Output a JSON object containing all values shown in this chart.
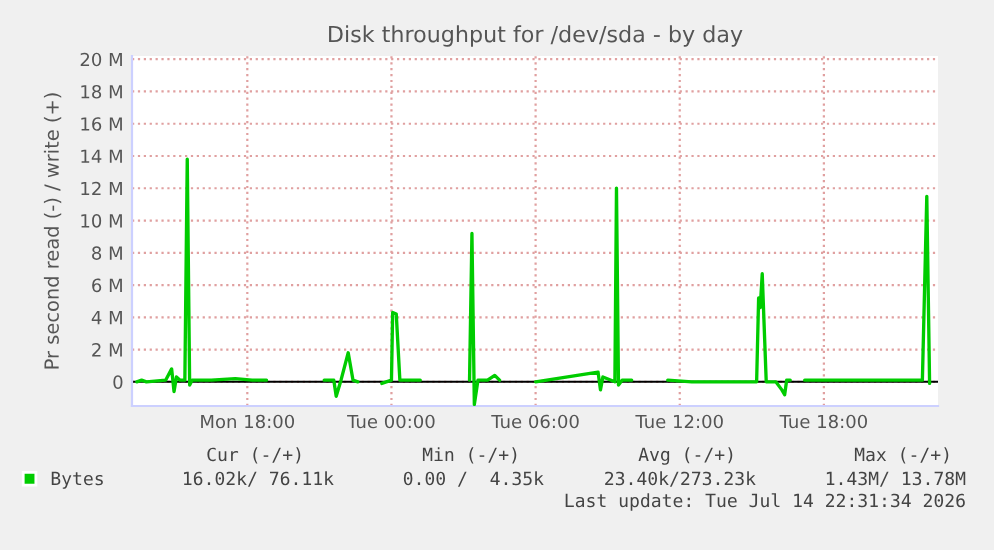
{
  "chart_data": {
    "type": "line",
    "title": "Disk throughput for /dev/sda - by day",
    "ylabel": "Pr second read (-) / write (+)",
    "x": [
      "2026-07-13T13:24",
      "2026-07-13T13:36",
      "2026-07-13T13:48",
      "2026-07-13T14:36",
      "2026-07-13T14:51",
      "2026-07-13T14:57",
      "2026-07-13T15:03",
      "2026-07-13T15:12",
      "2026-07-13T15:24",
      "2026-07-13T15:30",
      "2026-07-13T15:36",
      "2026-07-13T15:42",
      "2026-07-13T16:30",
      "2026-07-13T17:30",
      "2026-07-13T18:12",
      "2026-07-13T18:48",
      "2026-07-13T19:30",
      "2026-07-13T21:12",
      "2026-07-13T21:36",
      "2026-07-13T21:42",
      "2026-07-13T21:54",
      "2026-07-13T22:12",
      "2026-07-13T22:24",
      "2026-07-13T22:36",
      "2026-07-13T23:00",
      "2026-07-13T23:36",
      "2026-07-14T00:00",
      "2026-07-14T00:03",
      "2026-07-14T00:12",
      "2026-07-14T00:21",
      "2026-07-14T00:42",
      "2026-07-14T01:12",
      "2026-07-14T02:00",
      "2026-07-14T03:15",
      "2026-07-14T03:21",
      "2026-07-14T03:27",
      "2026-07-14T03:36",
      "2026-07-14T04:00",
      "2026-07-14T04:18",
      "2026-07-14T04:30",
      "2026-07-14T05:00",
      "2026-07-14T06:00",
      "2026-07-14T08:36",
      "2026-07-14T08:42",
      "2026-07-14T08:48",
      "2026-07-14T09:18",
      "2026-07-14T09:22",
      "2026-07-14T09:27",
      "2026-07-14T09:36",
      "2026-07-14T10:00",
      "2026-07-14T10:30",
      "2026-07-14T11:30",
      "2026-07-14T12:30",
      "2026-07-14T15:12",
      "2026-07-14T15:17",
      "2026-07-14T15:21",
      "2026-07-14T15:26",
      "2026-07-14T15:36",
      "2026-07-14T16:00",
      "2026-07-14T16:15",
      "2026-07-14T16:22",
      "2026-07-14T16:27",
      "2026-07-14T16:36",
      "2026-07-14T17:00",
      "2026-07-14T17:12",
      "2026-07-14T21:30",
      "2026-07-14T22:06",
      "2026-07-14T22:17",
      "2026-07-14T22:24"
    ],
    "series": [
      {
        "name": "Bytes",
        "color": "#00cc00",
        "values": [
          0.0,
          0.1,
          0.0,
          0.1,
          0.8,
          -0.6,
          0.3,
          0.1,
          0.1,
          13.8,
          -0.2,
          0.1,
          0.1,
          0.2,
          0.1,
          0.1,
          null,
          0.1,
          0.1,
          -0.9,
          0.1,
          1.8,
          0.1,
          0.0,
          null,
          -0.1,
          0.1,
          4.3,
          4.2,
          0.1,
          0.1,
          0.1,
          null,
          0.1,
          9.2,
          -1.4,
          0.1,
          0.1,
          0.4,
          0.1,
          null,
          0.0,
          0.6,
          -0.5,
          0.3,
          0.0,
          12.0,
          -0.2,
          0.1,
          0.1,
          null,
          0.1,
          0.0,
          0.0,
          5.2,
          4.6,
          6.7,
          0.0,
          0.0,
          -0.5,
          -0.8,
          0.1,
          0.1,
          null,
          0.1,
          0.1,
          0.1,
          11.5,
          -0.1
        ]
      }
    ],
    "xlim": [
      "2026-07-13T13:12",
      "2026-07-14T22:45"
    ],
    "xticks": [
      {
        "value": "2026-07-13T18:00",
        "label": "Mon 18:00"
      },
      {
        "value": "2026-07-14T00:00",
        "label": "Tue 00:00"
      },
      {
        "value": "2026-07-14T06:00",
        "label": "Tue 06:00"
      },
      {
        "value": "2026-07-14T12:00",
        "label": "Tue 12:00"
      },
      {
        "value": "2026-07-14T18:00",
        "label": "Tue 18:00"
      }
    ],
    "ylim": [
      -1.5,
      20.2
    ],
    "yticks": [
      {
        "value": 0,
        "label": "0"
      },
      {
        "value": 2,
        "label": "2 M"
      },
      {
        "value": 4,
        "label": "4 M"
      },
      {
        "value": 6,
        "label": "6 M"
      },
      {
        "value": 8,
        "label": "8 M"
      },
      {
        "value": 10,
        "label": "10 M"
      },
      {
        "value": 12,
        "label": "12 M"
      },
      {
        "value": 14,
        "label": "14 M"
      },
      {
        "value": 16,
        "label": "16 M"
      },
      {
        "value": 18,
        "label": "18 M"
      },
      {
        "value": 20,
        "label": "20 M"
      }
    ],
    "ref_lines": [
      {
        "axis": "y",
        "value": 0,
        "color": "#000000"
      }
    ],
    "grid": true,
    "legend": "bottom left",
    "marker": "none",
    "line_style": "solid",
    "annotations": [
      "Cur (-/+)",
      "Min (-/+)",
      "Avg (-/+)",
      "Max (-/+)",
      "16.02k/ 76.11k",
      "0.00 /  4.35k",
      "23.40k/273.23k",
      "1.43M/ 13.78M",
      "Last update: Tue Jul 14 22:31:34 2026"
    ]
  }
}
